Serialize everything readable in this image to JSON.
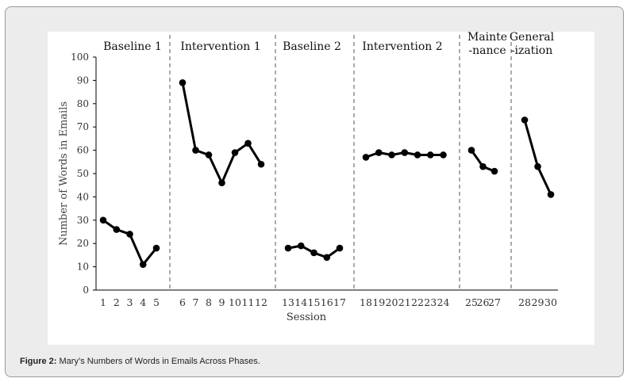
{
  "caption": {
    "label": "Figure 2:",
    "text": "Mary’s Numbers of Words in Emails Across Phases."
  },
  "chart_data": {
    "type": "line",
    "title": "",
    "xlabel": "Session",
    "ylabel": "Number of Words in Emails",
    "ylim": [
      0,
      100
    ],
    "yticks": [
      0,
      10,
      20,
      30,
      40,
      50,
      60,
      70,
      80,
      90,
      100
    ],
    "grid": false,
    "line_color": "#000000",
    "phases": [
      {
        "label": [
          "Baseline 1"
        ],
        "sessions": [
          1,
          2,
          3,
          4,
          5
        ],
        "values": [
          30,
          26,
          24,
          11,
          18
        ]
      },
      {
        "label": [
          "Intervention 1"
        ],
        "sessions": [
          6,
          7,
          8,
          9,
          10,
          11,
          12
        ],
        "values": [
          89,
          60,
          58,
          46,
          59,
          63,
          54
        ]
      },
      {
        "label": [
          "Baseline 2"
        ],
        "sessions": [
          13,
          14,
          15,
          16,
          17
        ],
        "values": [
          18,
          19,
          16,
          14,
          18
        ]
      },
      {
        "label": [
          "Intervention 2"
        ],
        "sessions": [
          18,
          19,
          20,
          21,
          22,
          23,
          24
        ],
        "values": [
          57,
          59,
          58,
          59,
          58,
          58,
          58
        ]
      },
      {
        "label": [
          "Mainte",
          "-nance"
        ],
        "sessions": [
          25,
          26,
          27
        ],
        "values": [
          60,
          53,
          51
        ]
      },
      {
        "label": [
          "General",
          "-ization"
        ],
        "sessions": [
          28,
          29,
          30
        ],
        "values": [
          73,
          53,
          41
        ]
      }
    ]
  }
}
